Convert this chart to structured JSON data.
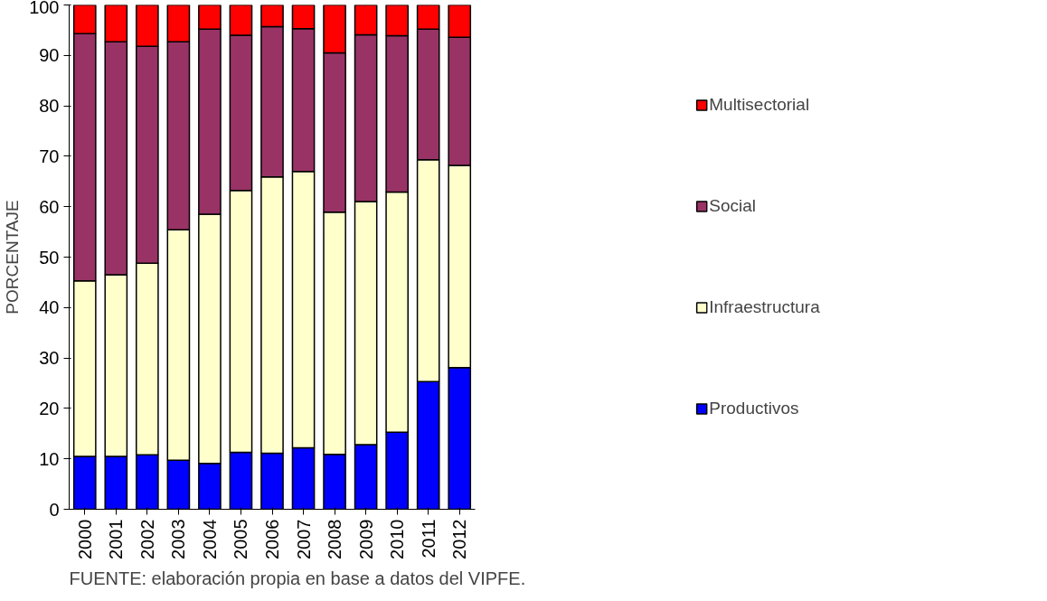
{
  "chart_data": {
    "type": "bar",
    "stacked": true,
    "ylabel": "PORCENTAJE",
    "categories": [
      "2000",
      "2001",
      "2002",
      "2003",
      "2004",
      "2005",
      "2006",
      "2007",
      "2008",
      "2009",
      "2010",
      "2011",
      "2012"
    ],
    "series": [
      {
        "name": "Productivos",
        "color": "#0000ff",
        "values": [
          10.5,
          10.5,
          10.8,
          9.7,
          9.1,
          11.3,
          11.1,
          12.2,
          10.9,
          12.8,
          15.3,
          25.3,
          28.1
        ]
      },
      {
        "name": "Infraestructura",
        "color": "#ffffcc",
        "values": [
          34.8,
          36.0,
          38.0,
          45.7,
          49.4,
          51.9,
          54.8,
          54.8,
          48.0,
          48.2,
          47.6,
          44.0,
          40.1
        ]
      },
      {
        "name": "Social",
        "color": "#993366",
        "values": [
          49.0,
          46.2,
          43.0,
          37.3,
          36.7,
          30.8,
          29.8,
          28.3,
          31.6,
          33.1,
          31.0,
          25.9,
          25.4
        ]
      },
      {
        "name": "Multisectorial",
        "color": "#ff0000",
        "values": [
          5.7,
          7.3,
          8.2,
          7.3,
          4.8,
          6.0,
          4.3,
          4.7,
          9.5,
          5.9,
          6.1,
          4.8,
          6.4
        ]
      }
    ],
    "ylim": [
      0,
      100
    ],
    "yticks": [
      0,
      10,
      20,
      30,
      40,
      50,
      60,
      70,
      80,
      90,
      100
    ],
    "grid": false,
    "legend": "right",
    "annotations": [
      "FUENTE: elaboración propia en base a datos del VIPFE."
    ]
  }
}
